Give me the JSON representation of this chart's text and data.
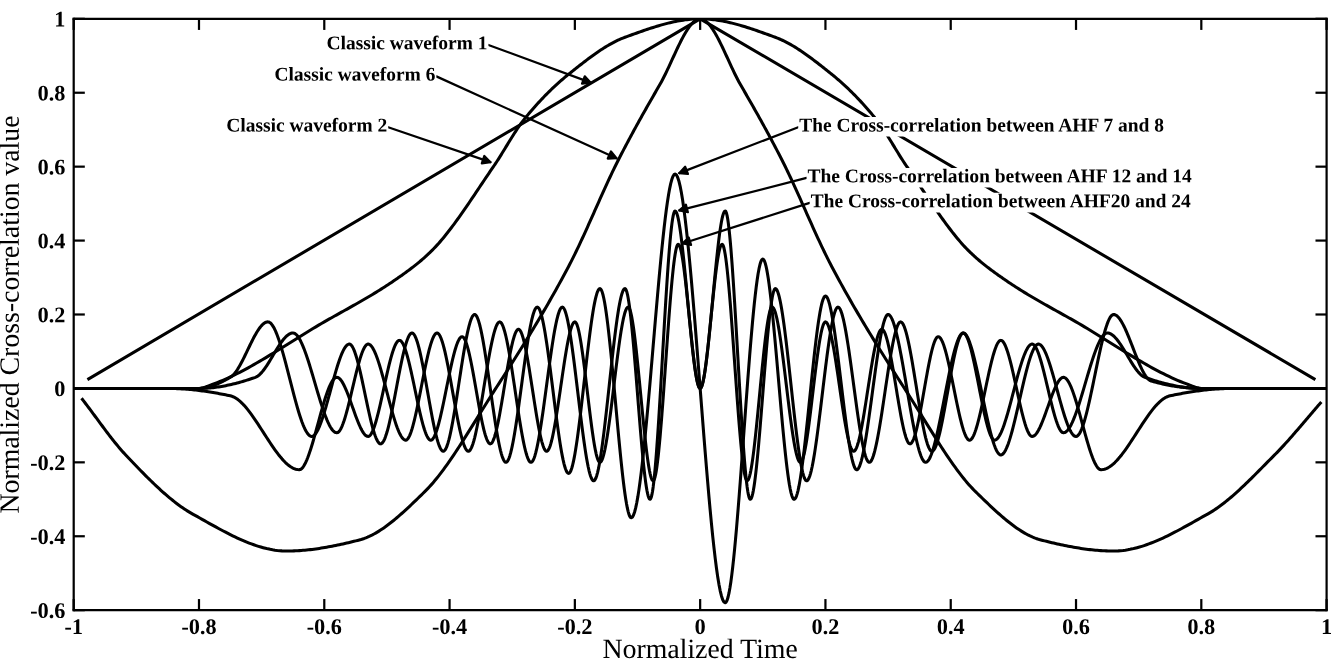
{
  "chart_data": {
    "type": "line",
    "xlabel": "Normalized Time",
    "ylabel": "Normalized Cross-correlation value",
    "xlim": [
      -1,
      1
    ],
    "xticks": [
      -1,
      -0.8,
      -0.6,
      -0.4,
      -0.2,
      0,
      0.2,
      0.4,
      0.6,
      0.8,
      1
    ],
    "ylim": [
      -0.6,
      1
    ],
    "yticks": [
      -0.6,
      -0.4,
      -0.2,
      0,
      0.2,
      0.4,
      0.6,
      0.8,
      1
    ],
    "grid": false,
    "legend": false,
    "marker": "none",
    "line_style": "solid",
    "series": [
      {
        "color": "#000000",
        "x": [
          -0.976,
          0,
          0.98
        ],
        "values": [
          0.026,
          1,
          0.026
        ]
      },
      {
        "color": "#000000",
        "x": [
          -1,
          -0.8,
          -0.78,
          -0.6,
          -0.49,
          -0.43,
          -0.33,
          -0.28,
          -0.21,
          -0.12,
          0,
          0.12,
          0.21,
          0.28,
          0.33,
          0.43,
          0.49,
          0.6,
          0.78,
          0.8,
          1
        ],
        "values": [
          0,
          0,
          0.01,
          0.18,
          0.29,
          0.37,
          0.6,
          0.73,
          0.85,
          0.95,
          1,
          0.95,
          0.85,
          0.73,
          0.6,
          0.37,
          0.29,
          0.18,
          0.01,
          0,
          0
        ]
      },
      {
        "color": "#000000",
        "x": [
          -0.986,
          -0.917,
          -0.81,
          -0.66,
          -0.544,
          -0.44,
          -0.33,
          -0.21,
          -0.13,
          -0.065,
          0,
          0.065,
          0.13,
          0.21,
          0.33,
          0.44,
          0.544,
          0.66,
          0.81,
          0.917,
          0.99
        ],
        "values": [
          -0.03,
          -0.18,
          -0.34,
          -0.44,
          -0.41,
          -0.28,
          -0.01,
          0.33,
          0.62,
          0.82,
          1,
          0.82,
          0.62,
          0.33,
          -0.01,
          -0.28,
          -0.41,
          -0.44,
          -0.34,
          -0.18,
          -0.04
        ]
      },
      {
        "color": "#000000",
        "x": [
          -1,
          -0.8,
          -0.75,
          -0.69,
          -0.62,
          -0.56,
          -0.51,
          -0.46,
          -0.41,
          -0.36,
          -0.31,
          -0.26,
          -0.21,
          -0.16,
          -0.11,
          -0.04,
          0.04,
          0.1,
          0.15,
          0.2,
          0.25,
          0.3,
          0.36,
          0.42,
          0.48,
          0.54,
          0.6,
          0.66,
          0.72,
          0.8,
          1
        ],
        "values": [
          0,
          0,
          0.03,
          0.18,
          -0.13,
          0.12,
          -0.15,
          0.15,
          -0.17,
          0.2,
          -0.2,
          0.22,
          -0.23,
          0.27,
          -0.35,
          0.58,
          -0.58,
          0.35,
          -0.3,
          0.25,
          -0.22,
          0.2,
          -0.2,
          0.15,
          -0.18,
          0.12,
          -0.13,
          0.2,
          0.02,
          0,
          0
        ]
      },
      {
        "color": "#000000",
        "x": [
          -1,
          -0.8,
          -0.71,
          -0.65,
          -0.58,
          -0.53,
          -0.47,
          -0.42,
          -0.37,
          -0.32,
          -0.27,
          -0.22,
          -0.17,
          -0.12,
          -0.08,
          -0.04,
          0,
          0.04,
          0.08,
          0.12,
          0.17,
          0.22,
          0.27,
          0.32,
          0.37,
          0.42,
          0.47,
          0.53,
          0.58,
          0.65,
          0.71,
          0.8,
          1
        ],
        "values": [
          0,
          0,
          0.03,
          0.15,
          -0.12,
          0.12,
          -0.14,
          0.15,
          -0.17,
          0.18,
          -0.2,
          0.22,
          -0.25,
          0.27,
          -0.3,
          0.48,
          0,
          0.48,
          -0.3,
          0.27,
          -0.25,
          0.22,
          -0.2,
          0.18,
          -0.17,
          0.15,
          -0.14,
          0.12,
          -0.12,
          0.15,
          0.03,
          0,
          0
        ]
      },
      {
        "color": "#000000",
        "x": [
          -1,
          -0.85,
          -0.75,
          -0.64,
          -0.58,
          -0.53,
          -0.48,
          -0.43,
          -0.38,
          -0.335,
          -0.29,
          -0.245,
          -0.2,
          -0.16,
          -0.115,
          -0.075,
          -0.035,
          0,
          0.035,
          0.075,
          0.115,
          0.16,
          0.2,
          0.245,
          0.29,
          0.335,
          0.38,
          0.43,
          0.48,
          0.53,
          0.58,
          0.64,
          0.75,
          0.85,
          1
        ],
        "values": [
          0,
          0,
          -0.02,
          -0.22,
          0.03,
          -0.13,
          0.13,
          -0.14,
          0.14,
          -0.15,
          0.16,
          -0.17,
          0.18,
          -0.2,
          0.22,
          -0.25,
          0.39,
          0,
          0.39,
          -0.25,
          0.22,
          -0.2,
          0.18,
          -0.17,
          0.16,
          -0.15,
          0.14,
          -0.14,
          0.13,
          -0.13,
          0.03,
          -0.22,
          -0.02,
          0,
          0
        ]
      }
    ],
    "annotations": [
      {
        "text": "Classic waveform 1",
        "x": -0.171,
        "y": 0.825
      },
      {
        "text": "Classic waveform 6",
        "x": -0.13,
        "y": 0.62
      },
      {
        "text": "Classic waveform 2",
        "x": -0.331,
        "y": 0.61
      },
      {
        "text": "The Cross-correlation between AHF 7 and 8",
        "x": -0.037,
        "y": 0.58
      },
      {
        "text": "The Cross-correlation between AHF 12 and 14",
        "x": -0.037,
        "y": 0.48
      },
      {
        "text": "The Cross-correlation between AHF20 and 24",
        "x": -0.032,
        "y": 0.39
      }
    ]
  }
}
